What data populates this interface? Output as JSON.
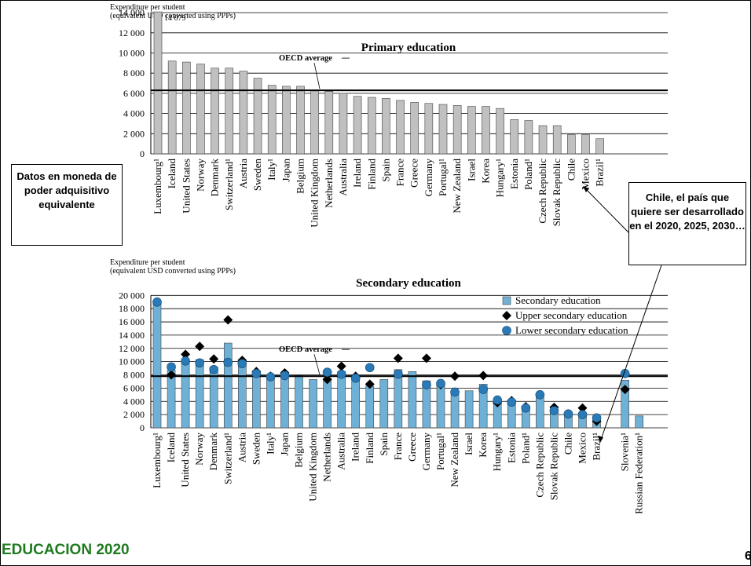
{
  "chart_data": [
    {
      "type": "bar",
      "title": "Primary education",
      "ylabel": "Expenditure per student\n(equivalent USD converted using PPPs)",
      "ylim": [
        0,
        14000
      ],
      "yticks": [
        "0",
        "2 000",
        "4 000",
        "6 000",
        "8 000",
        "10 000",
        "12 000",
        "14 000"
      ],
      "grid": true,
      "categories": [
        "Luxembourg¹",
        "Iceland",
        "United States",
        "Norway",
        "Denmark",
        "Switzerland¹",
        "Austria",
        "Sweden",
        "Italy¹",
        "Japan",
        "Belgium",
        "United Kingdom",
        "Netherlands",
        "Australia",
        "Ireland",
        "Finland",
        "Spain",
        "France",
        "Greece",
        "Germany",
        "Portugal¹",
        "New Zealand",
        "Israel",
        "Korea",
        "Hungary¹",
        "Estonia",
        "Poland¹",
        "Czech Republic",
        "Slovak Republic",
        "Chile",
        "Mexico",
        "Brazil¹"
      ],
      "series": [
        {
          "name": "Primary education",
          "color": "#c0c0c0",
          "values": [
            14079,
            9200,
            9100,
            8900,
            8500,
            8500,
            8200,
            7500,
            6800,
            6700,
            6700,
            6300,
            6200,
            6000,
            5700,
            5600,
            5500,
            5300,
            5100,
            5000,
            4900,
            4800,
            4700,
            4700,
            4500,
            3400,
            3300,
            2800,
            2800,
            1900,
            1900,
            1500
          ]
        }
      ],
      "oecd_average": 6300,
      "average_label": "OECD average",
      "data_label": "14 079"
    },
    {
      "type": "bar",
      "title": "Secondary education",
      "ylabel": "Expenditure per student\n(equivalent USD converted using PPPs)",
      "ylim": [
        0,
        20000
      ],
      "yticks": [
        "0",
        "2 000",
        "4 000",
        "6 000",
        "8 000",
        "10 000",
        "12 000",
        "14 000",
        "16 000",
        "18 000",
        "20 000"
      ],
      "grid": true,
      "legend_position": "top-right",
      "categories": [
        "Luxembourg¹",
        "Iceland",
        "United States",
        "Norway",
        "Denmark",
        "Switzerland¹",
        "Austria",
        "Sweden",
        "Italy¹",
        "Japan",
        "Belgium",
        "United Kingdom",
        "Netherlands",
        "Australia",
        "Ireland",
        "Finland",
        "Spain",
        "France",
        "Greece",
        "Germany",
        "Portugal¹",
        "New Zealand",
        "Israel",
        "Korea",
        "Hungary¹",
        "Estonia",
        "Poland¹",
        "Czech Republic",
        "Slovak Republic",
        "Chile",
        "Mexico",
        "Brazil¹",
        "",
        "Slovenia¹",
        "Russian Federation¹"
      ],
      "series": [
        {
          "name": "Secondary education",
          "color": "#6fb1d6",
          "marker": "bar",
          "values": [
            18900,
            8700,
            10100,
            10300,
            9200,
            12800,
            9900,
            8300,
            7800,
            8000,
            7900,
            7300,
            7500,
            8500,
            7600,
            6300,
            7300,
            8800,
            8500,
            7100,
            6800,
            5600,
            5600,
            6600,
            4000,
            3900,
            3100,
            4900,
            2700,
            2100,
            2200,
            1500,
            null,
            7200,
            1800
          ]
        },
        {
          "name": "Upper secondary education",
          "color": "#000000",
          "marker": "diamond",
          "values": [
            19000,
            8000,
            11100,
            12300,
            10400,
            16300,
            10200,
            8500,
            7800,
            8300,
            null,
            null,
            7300,
            9300,
            7800,
            6600,
            null,
            10500,
            null,
            10500,
            6500,
            7800,
            null,
            7900,
            3800,
            4100,
            3200,
            5000,
            3100,
            2100,
            3000,
            1000,
            null,
            5800,
            null
          ]
        },
        {
          "name": "Lower secondary education",
          "color": "#2a7ab8",
          "marker": "circle",
          "values": [
            19000,
            9200,
            10100,
            9800,
            8800,
            9900,
            9700,
            8200,
            7700,
            7900,
            null,
            null,
            8400,
            8100,
            7500,
            9100,
            null,
            8100,
            null,
            6500,
            6700,
            5400,
            null,
            5800,
            4200,
            3900,
            3000,
            5000,
            2600,
            2100,
            2000,
            1500,
            null,
            8200,
            null
          ]
        }
      ],
      "oecd_average": 7800,
      "average_label": "OECD average"
    }
  ],
  "annotations": {
    "left_box": "Datos en moneda de poder adquisitivo equivalente",
    "right_box": "Chile, el país que quiere ser desarrollado en el 2020, 2025, 2030…"
  },
  "footer": {
    "title": "EDUCACION 2020",
    "page_number": "6"
  }
}
